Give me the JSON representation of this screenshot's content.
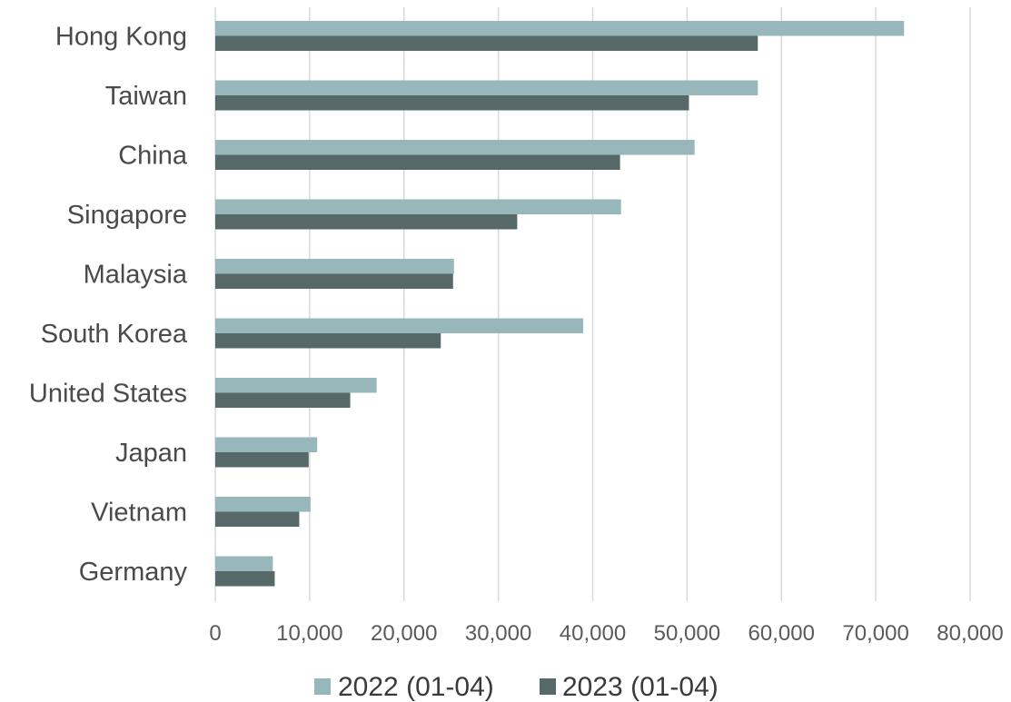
{
  "chart_data": {
    "type": "bar",
    "orientation": "horizontal",
    "categories": [
      "Hong Kong",
      "Taiwan",
      "China",
      "Singapore",
      "Malaysia",
      "South Korea",
      "United States",
      "Japan",
      "Vietnam",
      "Germany"
    ],
    "series": [
      {
        "name": "2022 (01-04)",
        "color": "#97b7bb",
        "values": [
          73000,
          57500,
          50800,
          43000,
          25300,
          39000,
          17100,
          10800,
          10100,
          6100
        ]
      },
      {
        "name": "2023 (01-04)",
        "color": "#566868",
        "values": [
          57500,
          50200,
          42900,
          32000,
          25200,
          23900,
          14300,
          9900,
          8900,
          6300
        ]
      }
    ],
    "xlim": [
      0,
      80000
    ],
    "xticks": [
      "0",
      "10,000",
      "20,000",
      "30,000",
      "40,000",
      "50,000",
      "60,000",
      "70,000",
      "80,000"
    ],
    "grid": true,
    "legend_position": "bottom"
  }
}
